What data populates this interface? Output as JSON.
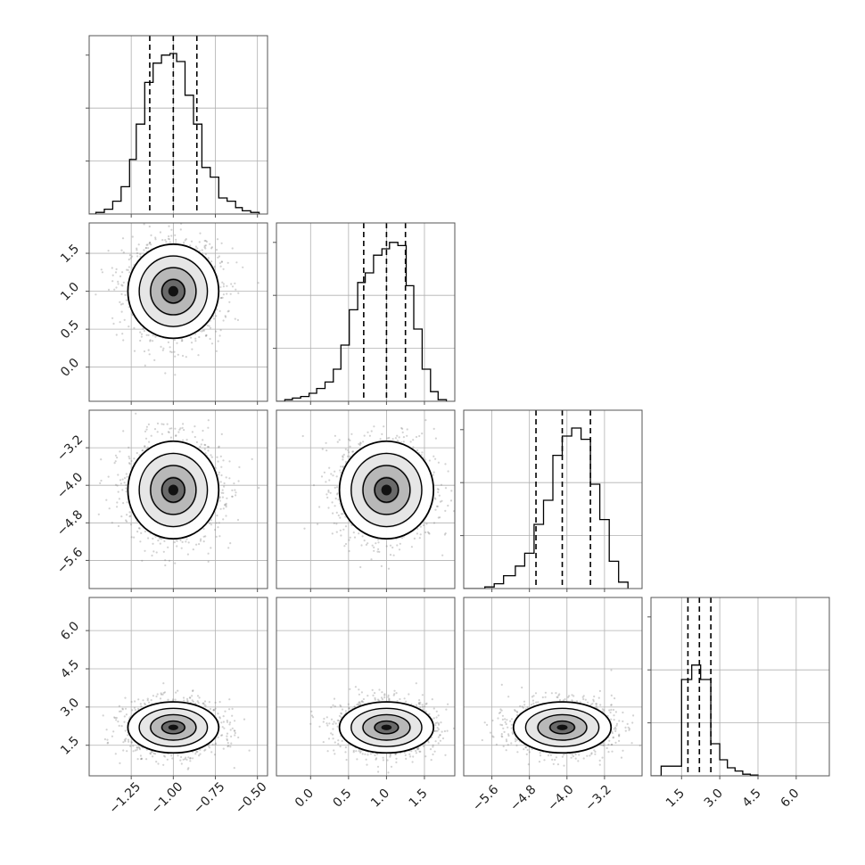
{
  "chart_data": {
    "type": "corner",
    "title": "",
    "parameters": [
      {
        "name": "p0",
        "label": "",
        "range": [
          -1.5,
          -0.44
        ],
        "ticks": [
          -1.25,
          -1.0,
          -0.75,
          -0.5
        ],
        "tick_labels": [
          "−1.25",
          "−1.00",
          "−0.75",
          "−0.50"
        ],
        "quantiles": [
          -1.14,
          -1.0,
          -0.86
        ],
        "hist": [
          [
            -1.5,
            0.0
          ],
          [
            -1.46,
            0.01
          ],
          [
            -1.41,
            0.03
          ],
          [
            -1.36,
            0.08
          ],
          [
            -1.31,
            0.17
          ],
          [
            -1.26,
            0.34
          ],
          [
            -1.22,
            0.56
          ],
          [
            -1.17,
            0.82
          ],
          [
            -1.12,
            0.94
          ],
          [
            -1.07,
            0.99
          ],
          [
            -1.02,
            1.0
          ],
          [
            -0.98,
            0.95
          ],
          [
            -0.93,
            0.74
          ],
          [
            -0.88,
            0.56
          ],
          [
            -0.83,
            0.29
          ],
          [
            -0.78,
            0.23
          ],
          [
            -0.73,
            0.1
          ],
          [
            -0.68,
            0.08
          ],
          [
            -0.63,
            0.04
          ],
          [
            -0.59,
            0.02
          ],
          [
            -0.54,
            0.01
          ],
          [
            -0.49,
            0.0
          ]
        ]
      },
      {
        "name": "p1",
        "label": "",
        "range": [
          -0.45,
          1.9
        ],
        "ticks": [
          0.0,
          0.5,
          1.0,
          1.5
        ],
        "tick_labels": [
          "0.0",
          "0.5",
          "1.0",
          "1.5"
        ],
        "quantiles": [
          0.7,
          1.0,
          1.25
        ],
        "hist": [
          [
            -0.45,
            0.0
          ],
          [
            -0.34,
            0.01
          ],
          [
            -0.24,
            0.02
          ],
          [
            -0.13,
            0.03
          ],
          [
            -0.02,
            0.05
          ],
          [
            0.08,
            0.08
          ],
          [
            0.19,
            0.12
          ],
          [
            0.3,
            0.2
          ],
          [
            0.4,
            0.35
          ],
          [
            0.51,
            0.57
          ],
          [
            0.62,
            0.74
          ],
          [
            0.72,
            0.8
          ],
          [
            0.83,
            0.91
          ],
          [
            0.94,
            0.95
          ],
          [
            1.04,
            0.99
          ],
          [
            1.15,
            0.97
          ],
          [
            1.26,
            0.72
          ],
          [
            1.36,
            0.45
          ],
          [
            1.47,
            0.2
          ],
          [
            1.58,
            0.06
          ],
          [
            1.68,
            0.01
          ],
          [
            1.79,
            0.0
          ]
        ]
      },
      {
        "name": "p2",
        "label": "",
        "range": [
          -6.2,
          -2.4
        ],
        "ticks": [
          -5.6,
          -4.8,
          -4.0,
          -3.2
        ],
        "tick_labels": [
          "−5.6",
          "−4.8",
          "−4.0",
          "−3.2"
        ],
        "quantiles": [
          -4.66,
          -4.1,
          -3.5
        ],
        "hist": [
          [
            -6.2,
            0.0
          ],
          [
            -5.75,
            0.01
          ],
          [
            -5.55,
            0.03
          ],
          [
            -5.35,
            0.08
          ],
          [
            -5.1,
            0.14
          ],
          [
            -4.9,
            0.22
          ],
          [
            -4.7,
            0.4
          ],
          [
            -4.5,
            0.55
          ],
          [
            -4.3,
            0.83
          ],
          [
            -4.1,
            0.95
          ],
          [
            -3.9,
            1.0
          ],
          [
            -3.7,
            0.93
          ],
          [
            -3.5,
            0.65
          ],
          [
            -3.3,
            0.43
          ],
          [
            -3.1,
            0.17
          ],
          [
            -2.9,
            0.04
          ],
          [
            -2.7,
            0.0
          ]
        ]
      },
      {
        "name": "p3",
        "label": "",
        "range": [
          0.3,
          7.3
        ],
        "ticks": [
          1.5,
          3.0,
          4.5,
          6.0
        ],
        "tick_labels": [
          "1.5",
          "3.0",
          "4.5",
          "6.0"
        ],
        "quantiles": [
          1.75,
          2.2,
          2.65
        ],
        "hist": [
          [
            0.3,
            0.0
          ],
          [
            0.7,
            0.06
          ],
          [
            1.5,
            0.6
          ],
          [
            1.9,
            0.69
          ],
          [
            2.25,
            0.6
          ],
          [
            2.65,
            0.2
          ],
          [
            3.0,
            0.1
          ],
          [
            3.3,
            0.05
          ],
          [
            3.6,
            0.03
          ],
          [
            3.9,
            0.01
          ],
          [
            4.2,
            0.005
          ],
          [
            4.5,
            0.0
          ]
        ]
      }
    ],
    "scatter_spread": [
      {
        "center": [
          -1.0,
          1.0
        ],
        "sigma": [
          0.135,
          0.31
        ]
      },
      {
        "center": [
          -1.0,
          -4.1
        ],
        "sigma": [
          0.135,
          0.52
        ]
      },
      {
        "center": [
          1.0,
          -4.1
        ],
        "sigma": [
          0.31,
          0.52
        ]
      },
      {
        "center": [
          -1.0,
          2.2
        ],
        "sigma": [
          0.135,
          0.5
        ]
      },
      {
        "center": [
          1.0,
          2.2
        ],
        "sigma": [
          0.31,
          0.5
        ]
      },
      {
        "center": [
          -4.1,
          2.2
        ],
        "sigma": [
          0.52,
          0.5
        ]
      }
    ],
    "contour_levels_sigma": [
      0.5,
      1.0,
      1.5,
      2.0
    ],
    "colors": {
      "axes": "#555555",
      "grid": "#b0b0b0",
      "hist": "#000000",
      "scatter": "#7f7f7f",
      "contour": "#000000"
    },
    "grid": true
  }
}
